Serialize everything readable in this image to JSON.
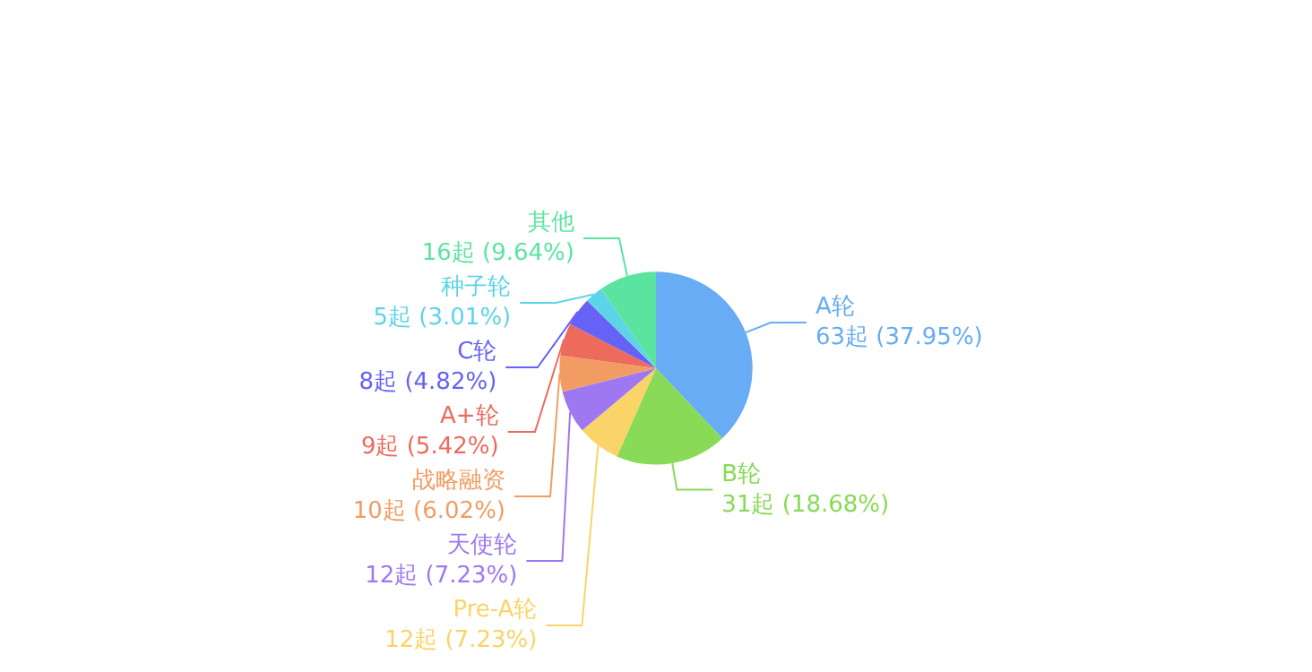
{
  "chart_data": {
    "type": "pie",
    "categories": [
      "A轮",
      "B轮",
      "Pre-A轮",
      "天使轮",
      "战略融资",
      "A+轮",
      "C轮",
      "种子轮",
      "其他"
    ],
    "values": [
      63,
      31,
      12,
      12,
      10,
      9,
      8,
      5,
      16
    ],
    "value_labels": [
      "63起 (37.95%)",
      "31起 (18.68%)",
      "12起 (7.23%)",
      "12起 (7.23%)",
      "10起 (6.02%)",
      "9起 (5.42%)",
      "8起 (4.82%)",
      "5起 (3.01%)",
      "16起 (9.64%)"
    ],
    "colors": [
      "#67acf5",
      "#88da57",
      "#fad468",
      "#9e78f2",
      "#f29c63",
      "#ec6b5c",
      "#6662f5",
      "#5dd4e8",
      "#5be4a0"
    ]
  }
}
